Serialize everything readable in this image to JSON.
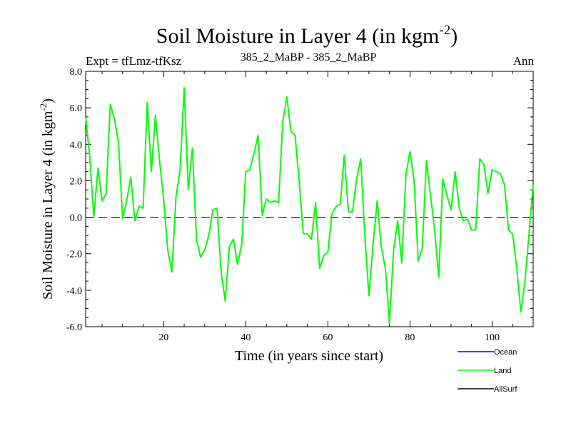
{
  "chart_data": {
    "type": "line",
    "title": "Soil Moisture in Layer 4 (in kgm",
    "title_sup": "-2",
    "title_end": ")",
    "left_label": "Expt = tfLmz-tfKsz",
    "subtitle": "385_2_MaBP - 385_2_MaBP",
    "right_label": "Ann",
    "xlabel": "Time (in years since start)",
    "ylabel": "Soil Moisture in Layer 4 (in kgm",
    "ylabel_sup": "-2",
    "ylabel_end": ")",
    "xlim": [
      1,
      110
    ],
    "ylim": [
      -6.0,
      8.0
    ],
    "x_ticks": [
      20,
      40,
      60,
      80,
      100
    ],
    "x_tick_labels": [
      "20",
      "40",
      "60",
      "80",
      "100"
    ],
    "y_ticks": [
      -6.0,
      -4.0,
      -2.0,
      0.0,
      2.0,
      4.0,
      6.0,
      8.0
    ],
    "y_tick_labels": [
      "-6.0",
      "-4.0",
      "-2.0",
      "0.0",
      "2.0",
      "4.0",
      "6.0",
      "8.0"
    ],
    "reference_line": 0.0,
    "series": [
      {
        "name": "Land",
        "color": "#00ff00",
        "x": [
          1,
          2,
          3,
          4,
          5,
          6,
          7,
          8,
          9,
          10,
          11,
          12,
          13,
          14,
          15,
          16,
          17,
          18,
          19,
          20,
          21,
          22,
          23,
          24,
          25,
          26,
          27,
          28,
          29,
          30,
          31,
          32,
          33,
          34,
          35,
          36,
          37,
          38,
          39,
          40,
          41,
          42,
          43,
          44,
          45,
          46,
          47,
          48,
          49,
          50,
          51,
          52,
          53,
          54,
          55,
          56,
          57,
          58,
          59,
          60,
          61,
          62,
          63,
          64,
          65,
          66,
          67,
          68,
          69,
          70,
          71,
          72,
          73,
          74,
          75,
          76,
          77,
          78,
          79,
          80,
          81,
          82,
          83,
          84,
          85,
          86,
          87,
          88,
          89,
          90,
          91,
          92,
          93,
          94,
          95,
          96,
          97,
          98,
          99,
          100,
          101,
          102,
          103,
          104,
          105,
          106,
          107,
          108,
          109,
          110
        ],
        "values": [
          5.5,
          3.3,
          0.0,
          2.7,
          0.9,
          1.3,
          6.2,
          5.4,
          4.1,
          -0.1,
          0.9,
          2.2,
          -0.2,
          0.6,
          0.5,
          6.3,
          2.5,
          5.6,
          3.1,
          1.0,
          -1.8,
          -3.0,
          1.1,
          2.6,
          7.1,
          1.5,
          3.8,
          -1.2,
          -2.2,
          -1.8,
          -1.0,
          0.4,
          0.5,
          -3.0,
          -4.6,
          -1.6,
          -1.2,
          -2.6,
          -1.5,
          2.5,
          2.6,
          3.5,
          4.5,
          0.1,
          1.0,
          0.8,
          0.9,
          0.8,
          5.2,
          6.6,
          4.7,
          4.5,
          2.0,
          -0.9,
          -0.9,
          -1.2,
          0.8,
          -2.8,
          -2.1,
          -1.9,
          0.2,
          0.6,
          0.7,
          3.4,
          0.3,
          0.3,
          2.1,
          3.2,
          -1.0,
          -4.3,
          -1.5,
          0.9,
          -1.6,
          -2.8,
          -5.8,
          -1.8,
          -0.2,
          -2.5,
          2.3,
          3.6,
          2.0,
          -2.4,
          -1.7,
          3.1,
          1.2,
          -0.7,
          -3.3,
          2.1,
          1.2,
          0.4,
          2.5,
          0.5,
          -0.2,
          -0.1,
          -0.7,
          -0.7,
          3.2,
          2.9,
          1.3,
          2.6,
          2.5,
          2.4,
          1.8,
          -0.7,
          -0.9,
          -2.8,
          -5.2,
          -3.5,
          -0.9,
          1.8
        ]
      }
    ],
    "legend": [
      {
        "name": "Ocean",
        "color": "#0000ff"
      },
      {
        "name": "Land",
        "color": "#00ff00"
      },
      {
        "name": "AllSurf",
        "color": "#000000"
      }
    ]
  }
}
